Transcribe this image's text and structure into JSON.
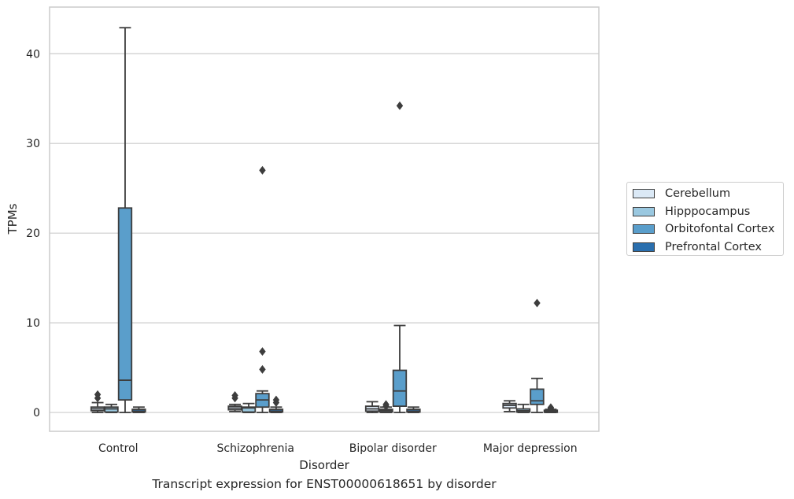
{
  "caption": "Transcript expression for ENST00000618651 by disorder",
  "chart_data": {
    "type": "box",
    "title": "",
    "xlabel": "Disorder",
    "ylabel": "TPMs",
    "ylim": [
      -2.1,
      45.2
    ],
    "yticks": [
      0,
      10,
      20,
      30,
      40
    ],
    "grid": "horizontal",
    "legend_position": "right",
    "categories": [
      "Control",
      "Schizophrenia",
      "Bipolar disorder",
      "Major depression"
    ],
    "series": [
      {
        "name": "Cerebellum",
        "color": "#dbe9f6",
        "boxes": [
          {
            "whislo": 0.0,
            "q1": 0.2,
            "med": 0.4,
            "q3": 0.6,
            "whishi": 1.1,
            "fliers": [
              1.6,
              2.0
            ]
          },
          {
            "whislo": 0.1,
            "q1": 0.3,
            "med": 0.5,
            "q3": 0.7,
            "whishi": 0.9,
            "fliers": [
              1.6,
              1.9
            ]
          },
          {
            "whislo": 0.0,
            "q1": 0.15,
            "med": 0.4,
            "q3": 0.7,
            "whishi": 1.2,
            "fliers": []
          },
          {
            "whislo": 0.1,
            "q1": 0.5,
            "med": 0.8,
            "q3": 1.0,
            "whishi": 1.3,
            "fliers": []
          }
        ]
      },
      {
        "name": "Hipppocampus",
        "color": "#9ac8e0",
        "boxes": [
          {
            "whislo": 0.0,
            "q1": 0.05,
            "med": 0.4,
            "q3": 0.6,
            "whishi": 0.9,
            "fliers": []
          },
          {
            "whislo": 0.0,
            "q1": 0.05,
            "med": 0.5,
            "q3": 0.6,
            "whishi": 1.0,
            "fliers": []
          },
          {
            "whislo": 0.0,
            "q1": 0.05,
            "med": 0.2,
            "q3": 0.35,
            "whishi": 0.6,
            "fliers": [
              0.7,
              0.9
            ]
          },
          {
            "whislo": 0.0,
            "q1": 0.05,
            "med": 0.2,
            "q3": 0.4,
            "whishi": 0.9,
            "fliers": []
          }
        ]
      },
      {
        "name": "Orbitofontal Cortex",
        "color": "#5a9ecb",
        "boxes": [
          {
            "whislo": 0.0,
            "q1": 1.4,
            "med": 3.6,
            "q3": 22.8,
            "whishi": 42.9,
            "fliers": []
          },
          {
            "whislo": 0.0,
            "q1": 0.6,
            "med": 1.4,
            "q3": 2.1,
            "whishi": 2.4,
            "fliers": [
              4.8,
              6.8,
              27.0
            ]
          },
          {
            "whislo": 0.0,
            "q1": 0.7,
            "med": 2.4,
            "q3": 4.7,
            "whishi": 9.7,
            "fliers": [
              34.2
            ]
          },
          {
            "whislo": 0.0,
            "q1": 0.9,
            "med": 1.3,
            "q3": 2.6,
            "whishi": 3.8,
            "fliers": [
              12.2
            ]
          }
        ]
      },
      {
        "name": "Prefrontal Cortex",
        "color": "#2a6fae",
        "boxes": [
          {
            "whislo": 0.0,
            "q1": 0.05,
            "med": 0.15,
            "q3": 0.35,
            "whishi": 0.6,
            "fliers": []
          },
          {
            "whislo": 0.0,
            "q1": 0.05,
            "med": 0.15,
            "q3": 0.35,
            "whishi": 0.6,
            "fliers": [
              1.1,
              1.4
            ]
          },
          {
            "whislo": 0.0,
            "q1": 0.05,
            "med": 0.15,
            "q3": 0.35,
            "whishi": 0.6,
            "fliers": []
          },
          {
            "whislo": 0.0,
            "q1": 0.02,
            "med": 0.1,
            "q3": 0.25,
            "whishi": 0.35,
            "fliers": [
              0.45,
              0.55
            ]
          }
        ]
      }
    ]
  }
}
